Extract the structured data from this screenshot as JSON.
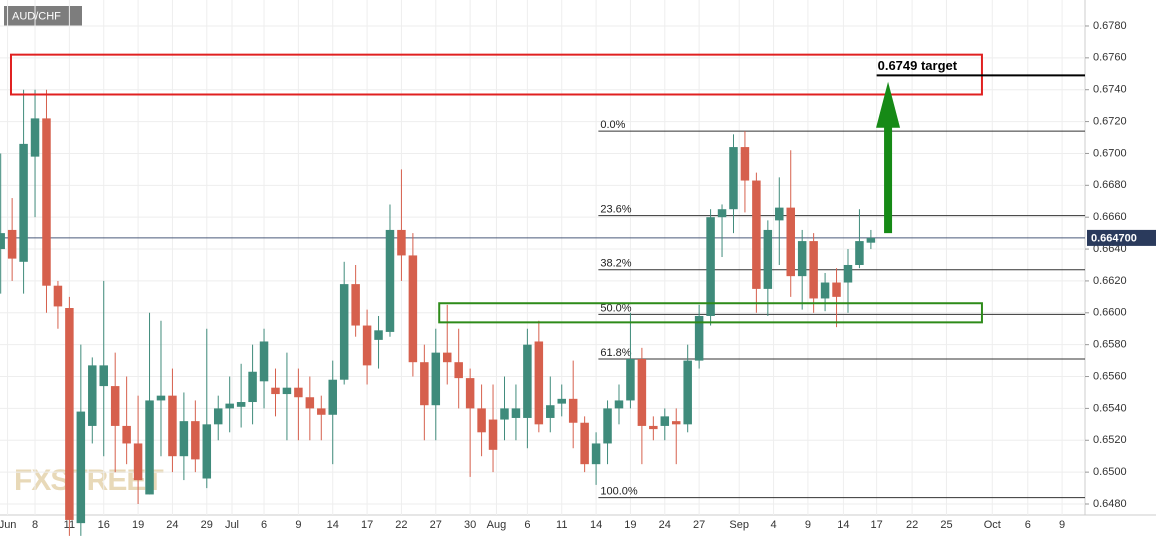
{
  "symbol": "AUD/CHF",
  "watermark": "FXSTREET",
  "chart_data": {
    "type": "candlestick",
    "up_color": "#3f8b7b",
    "down_color": "#d6604d",
    "grid": true,
    "ylim": [
      0.67963,
      0.64731
    ],
    "yticks": [
      {
        "value": 0.678,
        "label": "0.6780"
      },
      {
        "value": 0.676,
        "label": "0.6760"
      },
      {
        "value": 0.674,
        "label": "0.6740"
      },
      {
        "value": 0.672,
        "label": "0.6720"
      },
      {
        "value": 0.67,
        "label": "0.6700"
      },
      {
        "value": 0.668,
        "label": "0.6680"
      },
      {
        "value": 0.666,
        "label": "0.6660"
      },
      {
        "value": 0.664,
        "label": "0.6640"
      },
      {
        "value": 0.662,
        "label": "0.6620"
      },
      {
        "value": 0.66,
        "label": "0.6600"
      },
      {
        "value": 0.658,
        "label": "0.6580"
      },
      {
        "value": 0.656,
        "label": "0.6560"
      },
      {
        "value": 0.654,
        "label": "0.6540"
      },
      {
        "value": 0.652,
        "label": "0.6520"
      },
      {
        "value": 0.65,
        "label": "0.6500"
      },
      {
        "value": 0.648,
        "label": "0.6480"
      }
    ],
    "xlim": [
      -3.06,
      91.7
    ],
    "xticks": [
      {
        "value": -2.4,
        "label": "Jun"
      },
      {
        "value": 0,
        "label": "8"
      },
      {
        "value": 3,
        "label": "11"
      },
      {
        "value": 6,
        "label": "16"
      },
      {
        "value": 9,
        "label": "19"
      },
      {
        "value": 12,
        "label": "24"
      },
      {
        "value": 15,
        "label": "29"
      },
      {
        "value": 17.2,
        "label": "Jul"
      },
      {
        "value": 20,
        "label": "6"
      },
      {
        "value": 23,
        "label": "9"
      },
      {
        "value": 26,
        "label": "14"
      },
      {
        "value": 29,
        "label": "17"
      },
      {
        "value": 32,
        "label": "22"
      },
      {
        "value": 35,
        "label": "27"
      },
      {
        "value": 38,
        "label": "30"
      },
      {
        "value": 40.3,
        "label": "Aug"
      },
      {
        "value": 43,
        "label": "6"
      },
      {
        "value": 46,
        "label": "11"
      },
      {
        "value": 49,
        "label": "14"
      },
      {
        "value": 52,
        "label": "19"
      },
      {
        "value": 55,
        "label": "24"
      },
      {
        "value": 58,
        "label": "27"
      },
      {
        "value": 61.5,
        "label": "Sep"
      },
      {
        "value": 64.5,
        "label": "4"
      },
      {
        "value": 67.5,
        "label": "9"
      },
      {
        "value": 70.6,
        "label": "14"
      },
      {
        "value": 73.5,
        "label": "17"
      },
      {
        "value": 76.6,
        "label": "22"
      },
      {
        "value": 79.6,
        "label": "25"
      },
      {
        "value": 83.6,
        "label": "Oct"
      },
      {
        "value": 86.7,
        "label": "6"
      },
      {
        "value": 89.7,
        "label": "9"
      }
    ],
    "x": [
      -3,
      -2,
      -1,
      0,
      1,
      2,
      3,
      4,
      5,
      6,
      7,
      8,
      9,
      10,
      11,
      12,
      13,
      14,
      15,
      16,
      17,
      18,
      19,
      20,
      21,
      22,
      23,
      24,
      25,
      26,
      27,
      28,
      29,
      30,
      31,
      32,
      33,
      34,
      35,
      36,
      37,
      38,
      39,
      40,
      41,
      42,
      43,
      44,
      45,
      46,
      47,
      48,
      49,
      50,
      51,
      52,
      53,
      54,
      55,
      56,
      57,
      58,
      59,
      60,
      61,
      62,
      63,
      64,
      65,
      66,
      67,
      68,
      69,
      70,
      71,
      72,
      73
    ],
    "open": [
      0.664,
      0.6652,
      0.6632,
      0.6698,
      0.6722,
      0.6617,
      0.6603,
      0.6468,
      0.6529,
      0.6554,
      0.6554,
      0.6529,
      0.6518,
      0.6486,
      0.6545,
      0.6548,
      0.651,
      0.6532,
      0.6496,
      0.653,
      0.654,
      0.6541,
      0.6544,
      0.6557,
      0.6553,
      0.6549,
      0.6553,
      0.6547,
      0.654,
      0.6536,
      0.6558,
      0.6618,
      0.6592,
      0.6583,
      0.6588,
      0.6652,
      0.6636,
      0.6569,
      0.6542,
      0.6575,
      0.6569,
      0.6559,
      0.654,
      0.6533,
      0.6533,
      0.6534,
      0.6534,
      0.6582,
      0.6534,
      0.6543,
      0.6546,
      0.6531,
      0.6505,
      0.6518,
      0.654,
      0.6545,
      0.6571,
      0.6529,
      0.6529,
      0.6532,
      0.653,
      0.657,
      0.6598,
      0.666,
      0.6665,
      0.6704,
      0.6683,
      0.6615,
      0.6658,
      0.6666,
      0.6623,
      0.6645,
      0.6609,
      0.6619,
      0.6619,
      0.663,
      0.6644
    ],
    "high": [
      0.67,
      0.6672,
      0.674,
      0.674,
      0.674,
      0.662,
      0.661,
      0.658,
      0.6572,
      0.662,
      0.6575,
      0.656,
      0.6548,
      0.66,
      0.6595,
      0.6565,
      0.655,
      0.6545,
      0.659,
      0.6548,
      0.656,
      0.6568,
      0.658,
      0.659,
      0.6565,
      0.6575,
      0.6565,
      0.656,
      0.6548,
      0.657,
      0.6632,
      0.663,
      0.6602,
      0.6598,
      0.6668,
      0.669,
      0.665,
      0.658,
      0.659,
      0.6605,
      0.659,
      0.6565,
      0.6555,
      0.6555,
      0.656,
      0.6555,
      0.659,
      0.6595,
      0.656,
      0.6555,
      0.657,
      0.6535,
      0.6525,
      0.6545,
      0.6555,
      0.66,
      0.6578,
      0.6535,
      0.654,
      0.654,
      0.658,
      0.6605,
      0.6665,
      0.6668,
      0.6712,
      0.6714,
      0.6688,
      0.6658,
      0.6685,
      0.6702,
      0.6652,
      0.665,
      0.6625,
      0.6628,
      0.664,
      0.6665,
      0.6652
    ],
    "low": [
      0.6612,
      0.662,
      0.6612,
      0.666,
      0.66,
      0.659,
      0.646,
      0.646,
      0.6518,
      0.651,
      0.65,
      0.6505,
      0.648,
      0.6486,
      0.651,
      0.65,
      0.6495,
      0.65,
      0.649,
      0.652,
      0.6525,
      0.6528,
      0.653,
      0.654,
      0.6535,
      0.652,
      0.652,
      0.652,
      0.652,
      0.6505,
      0.6555,
      0.6585,
      0.6555,
      0.6565,
      0.6585,
      0.662,
      0.656,
      0.652,
      0.652,
      0.6555,
      0.654,
      0.6497,
      0.651,
      0.65,
      0.652,
      0.652,
      0.6515,
      0.6525,
      0.6525,
      0.6535,
      0.6515,
      0.65,
      0.6492,
      0.6505,
      0.653,
      0.654,
      0.6505,
      0.652,
      0.652,
      0.6505,
      0.6525,
      0.6565,
      0.6592,
      0.6635,
      0.665,
      0.6663,
      0.66,
      0.6598,
      0.663,
      0.661,
      0.6602,
      0.66,
      0.6601,
      0.6591,
      0.66,
      0.6628,
      0.664
    ],
    "close": [
      0.665,
      0.6634,
      0.6706,
      0.6722,
      0.6617,
      0.6604,
      0.647,
      0.6538,
      0.6567,
      0.6567,
      0.6529,
      0.6518,
      0.6495,
      0.6545,
      0.6548,
      0.651,
      0.6532,
      0.6508,
      0.653,
      0.654,
      0.6543,
      0.6544,
      0.6563,
      0.6582,
      0.6549,
      0.6553,
      0.6547,
      0.654,
      0.6536,
      0.6558,
      0.6618,
      0.6592,
      0.6567,
      0.6589,
      0.6652,
      0.6636,
      0.6569,
      0.6542,
      0.6575,
      0.6569,
      0.6559,
      0.654,
      0.6525,
      0.6514,
      0.654,
      0.654,
      0.658,
      0.653,
      0.6542,
      0.6546,
      0.6531,
      0.6505,
      0.6518,
      0.654,
      0.6545,
      0.6571,
      0.6529,
      0.6527,
      0.6535,
      0.653,
      0.657,
      0.6598,
      0.666,
      0.6665,
      0.6704,
      0.6683,
      0.6615,
      0.6652,
      0.6666,
      0.6623,
      0.6645,
      0.6609,
      0.6619,
      0.661,
      0.663,
      0.6645,
      0.6647
    ],
    "last_price": {
      "value": 0.6647,
      "label": "0.664700",
      "color": "#2a3a5c"
    },
    "fib_start_x": 49.2,
    "fib_levels": [
      {
        "value": 0.6714,
        "label": "0.0%"
      },
      {
        "value": 0.6661,
        "label": "23.6%"
      },
      {
        "value": 0.6627,
        "label": "38.2%"
      },
      {
        "value": 0.6599,
        "label": "50.0%"
      },
      {
        "value": 0.6571,
        "label": "61.8%"
      },
      {
        "value": 0.6484,
        "label": "100.0%"
      }
    ],
    "zones": [
      {
        "x": [
          -2.1,
          82.7
        ],
        "y": [
          0.6737,
          0.6762
        ],
        "color": "#e02020"
      },
      {
        "x": [
          35.3,
          82.7
        ],
        "y": [
          0.6594,
          0.6606
        ],
        "color": "#2e8b1a"
      }
    ],
    "target": {
      "value": 0.6749,
      "label": "0.6749 target",
      "x": 73.5
    },
    "arrow": {
      "x": 74.5,
      "from": 0.665,
      "to": 0.6745,
      "color": "#168a16"
    }
  }
}
